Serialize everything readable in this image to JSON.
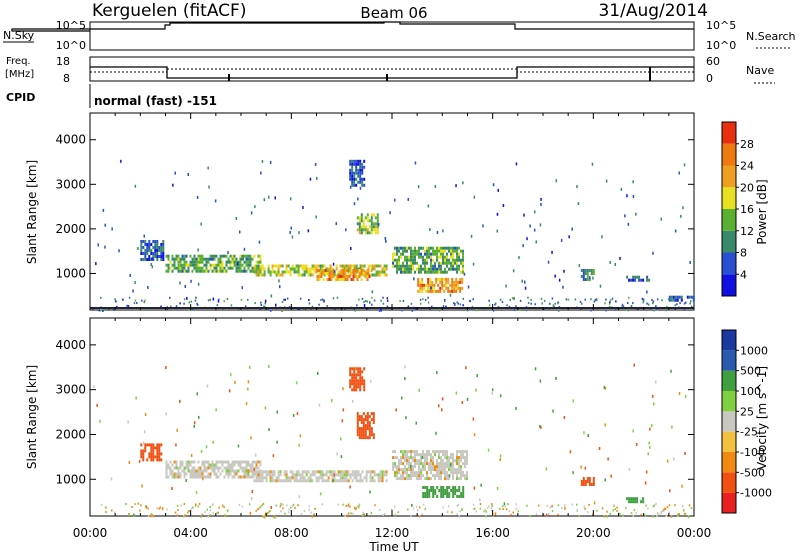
{
  "header": {
    "station": "Kerguelen (fitACF)",
    "beam": "Beam 06",
    "date": "31/Aug/2014"
  },
  "panels": {
    "nsky_label": "N.Sky",
    "nsearch_label": "N.Search",
    "freq_label_line1": "Freq.",
    "freq_label_line2": "[MHz]",
    "nave_label": "Nave",
    "cpid_label": "CPID",
    "cpid_value": "normal (fast) -151",
    "nsky_ticks": [
      "10^5",
      "10^0"
    ],
    "nsearch_ticks": [
      "10^5",
      "10^0"
    ],
    "freq_ticks": [
      "18",
      "8"
    ],
    "nave_ticks": [
      "60",
      "0"
    ]
  },
  "colors": {
    "power": [
      "#1010e0",
      "#2850d0",
      "#3a8a6a",
      "#5ab030",
      "#e8e020",
      "#f0a020",
      "#ef7a10",
      "#e83010"
    ],
    "velocity": [
      "#e82020",
      "#f05010",
      "#f08a10",
      "#f4c040",
      "#c8c8c0",
      "#80d040",
      "#40a040",
      "#2a5ab0",
      "#1a3aa0"
    ]
  },
  "chart_data": [
    {
      "type": "heatmap",
      "ylabel": "Slant Range [km]",
      "xlabel": "Time UT",
      "x_ticks": [
        "00:00",
        "04:00",
        "08:00",
        "12:00",
        "16:00",
        "20:00",
        "00:00"
      ],
      "xlim_hours": [
        0,
        24
      ],
      "y_ticks": [
        1000,
        2000,
        3000,
        4000
      ],
      "ylim": [
        180,
        4600
      ],
      "colorbar": {
        "label": "Power [dB]",
        "ticks": [
          "4",
          "8",
          "12",
          "16",
          "20",
          "24",
          "28"
        ],
        "range": [
          0,
          30
        ]
      },
      "echo_regions": [
        {
          "t0": 3.0,
          "t1": 6.8,
          "r0": 1080,
          "r1": 1420,
          "level": 12
        },
        {
          "t0": 6.5,
          "t1": 11.8,
          "r0": 950,
          "r1": 1200,
          "level": 16
        },
        {
          "t0": 9.0,
          "t1": 11.2,
          "r0": 880,
          "r1": 1100,
          "level": 22
        },
        {
          "t0": 12.0,
          "t1": 14.8,
          "r0": 1000,
          "r1": 1600,
          "level": 12
        },
        {
          "t0": 13.0,
          "t1": 14.8,
          "r0": 580,
          "r1": 900,
          "level": 22
        },
        {
          "t0": 10.6,
          "t1": 11.4,
          "r0": 1900,
          "r1": 2350,
          "level": 14
        },
        {
          "t0": 10.3,
          "t1": 10.9,
          "r0": 3000,
          "r1": 3550,
          "level": 6
        },
        {
          "t0": 2.0,
          "t1": 2.9,
          "r0": 1300,
          "r1": 1750,
          "level": 6
        },
        {
          "t0": 19.5,
          "t1": 20.0,
          "r0": 850,
          "r1": 1100,
          "level": 10
        },
        {
          "t0": 21.3,
          "t1": 22.2,
          "r0": 880,
          "r1": 950,
          "level": 6
        },
        {
          "t0": 23.0,
          "t1": 24.0,
          "r0": 400,
          "r1": 500,
          "level": 6
        }
      ]
    },
    {
      "type": "heatmap",
      "ylabel": "Slant Range [km]",
      "xlabel": "Time UT",
      "x_ticks": [
        "00:00",
        "04:00",
        "08:00",
        "12:00",
        "16:00",
        "20:00",
        "00:00"
      ],
      "xlim_hours": [
        0,
        24
      ],
      "y_ticks": [
        1000,
        2000,
        3000,
        4000
      ],
      "ylim": [
        180,
        4600
      ],
      "colorbar": {
        "label": "Velocity [m s^-1]",
        "ticks": [
          "1000",
          "500",
          "100",
          "25",
          "-25",
          "-100",
          "-500",
          "-1000"
        ],
        "range": [
          -1000,
          1000
        ]
      },
      "echo_regions": [
        {
          "t0": 3.0,
          "t1": 6.8,
          "r0": 1080,
          "r1": 1420,
          "level": 0
        },
        {
          "t0": 6.5,
          "t1": 11.8,
          "r0": 950,
          "r1": 1200,
          "level": 0
        },
        {
          "t0": 12.0,
          "t1": 15.0,
          "r0": 1000,
          "r1": 1650,
          "level": 0
        },
        {
          "t0": 13.2,
          "t1": 14.8,
          "r0": 600,
          "r1": 850,
          "level": 150
        },
        {
          "t0": 10.6,
          "t1": 11.3,
          "r0": 1900,
          "r1": 2500,
          "level": -300
        },
        {
          "t0": 10.3,
          "t1": 10.9,
          "r0": 3000,
          "r1": 3500,
          "level": -200
        },
        {
          "t0": 2.0,
          "t1": 2.8,
          "r0": 1450,
          "r1": 1800,
          "level": -150
        },
        {
          "t0": 19.5,
          "t1": 20.0,
          "r0": 850,
          "r1": 1050,
          "level": -150
        },
        {
          "t0": 21.3,
          "t1": 22.0,
          "r0": 500,
          "r1": 600,
          "level": 300
        }
      ]
    }
  ]
}
